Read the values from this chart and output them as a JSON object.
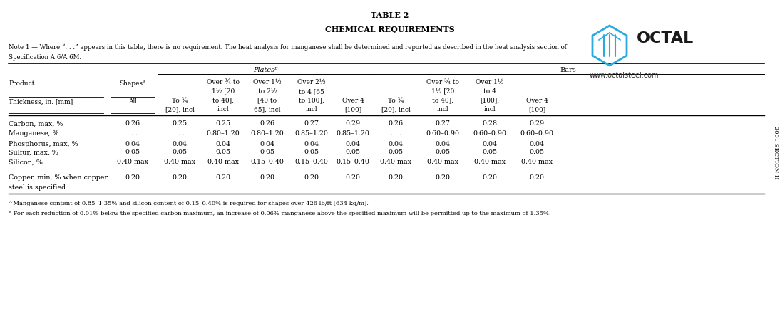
{
  "title1": "TABLE 2",
  "title2": "CHEMICAL REQUIREMENTS",
  "note_line1": "Note 1 — Where “. . .” appears in this table, there is no requirement. The heat analysis for manganese shall be determined and reported as described in the heat analysis section of",
  "note_line2": "Specification A 6/A 6M.",
  "footnote_a": "ᴬ Manganese content of 0.85–1.35% and silicon content of 0.15–0.40% is required for shapes over 426 lb/ft [634 kg/m].",
  "footnote_b": "ᴮ For each reduction of 0.01% below the specified carbon maximum, an increase of 0.06% manganese above the specified maximum will be permitted up to the maximum of 1.35%.",
  "side_text": "2001 SECTION II",
  "plates_label": "Platesᴮ",
  "bars_label": "Bars",
  "rows": [
    [
      "Carbon, max, %",
      "0.26",
      "0.25",
      "0.25",
      "0.26",
      "0.27",
      "0.29",
      "0.26",
      "0.27",
      "0.28",
      "0.29"
    ],
    [
      "Manganese, %",
      ". . .",
      ". . .",
      "0.80–1.20",
      "0.80–1.20",
      "0.85–1.20",
      "0.85–1.20",
      ". . .",
      "0.60–0.90",
      "0.60–0.90",
      "0.60–0.90"
    ],
    [
      "Phosphorus, max, %",
      "0.04",
      "0.04",
      "0.04",
      "0.04",
      "0.04",
      "0.04",
      "0.04",
      "0.04",
      "0.04",
      "0.04"
    ],
    [
      "Sulfur, max, %",
      "0.05",
      "0.05",
      "0.05",
      "0.05",
      "0.05",
      "0.05",
      "0.05",
      "0.05",
      "0.05",
      "0.05"
    ],
    [
      "Silicon, %",
      "0.40 max",
      "0.40 max",
      "0.40 max",
      "0.15–0.40",
      "0.15–0.40",
      "0.15–0.40",
      "0.40 max",
      "0.40 max",
      "0.40 max",
      "0.40 max"
    ],
    [
      "Copper, min, % when copper\nsteel is specified",
      "0.20",
      "0.20",
      "0.20",
      "0.20",
      "0.20",
      "0.20",
      "0.20",
      "0.20",
      "0.20",
      "0.20"
    ]
  ],
  "col_headers": [
    {
      "lines": [
        "Product",
        ""
      ],
      "bottom": "Thickness, in. [mm]",
      "align": "left"
    },
    {
      "lines": [
        "Shapesᴬ",
        ""
      ],
      "bottom": "All",
      "align": "center"
    },
    {
      "lines": [
        "To ¾",
        ""
      ],
      "bottom": "[20], incl",
      "align": "center"
    },
    {
      "lines": [
        "Over ¾ to",
        "1½ [20",
        "to 40],",
        "incl"
      ],
      "bottom": "",
      "align": "center"
    },
    {
      "lines": [
        "Over 1½",
        "to 2½",
        "[40 to",
        "65], incl"
      ],
      "bottom": "",
      "align": "center"
    },
    {
      "lines": [
        "Over 2½",
        "to 4 [65",
        "to 100],",
        "incl"
      ],
      "bottom": "",
      "align": "center"
    },
    {
      "lines": [
        "Over 4",
        ""
      ],
      "bottom": "[100]",
      "align": "center"
    },
    {
      "lines": [
        "To ¾",
        ""
      ],
      "bottom": "[20], incl",
      "align": "center"
    },
    {
      "lines": [
        "Over ¾ to",
        "1½ [20",
        "to 40],",
        "incl"
      ],
      "bottom": "",
      "align": "center"
    },
    {
      "lines": [
        "Over 1½",
        "to 4",
        "[100],",
        "incl"
      ],
      "bottom": "",
      "align": "center"
    },
    {
      "lines": [
        "Over 4",
        ""
      ],
      "bottom": "[100]",
      "align": "center"
    }
  ],
  "bg_color": "#ffffff",
  "text_color": "#000000"
}
